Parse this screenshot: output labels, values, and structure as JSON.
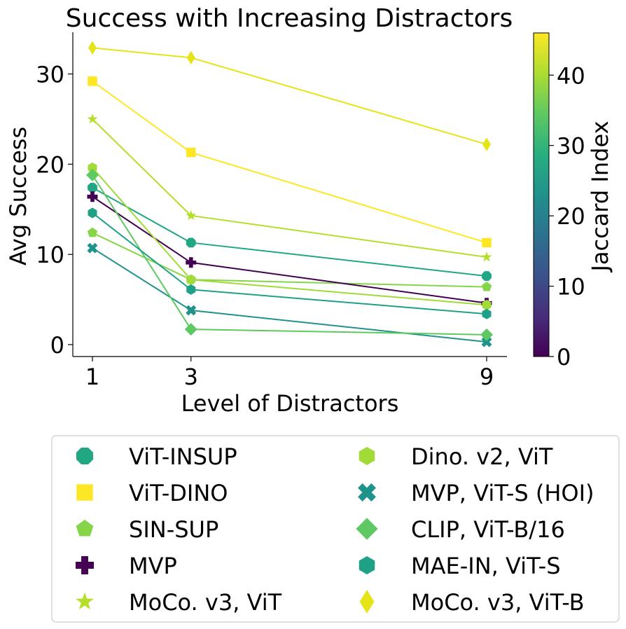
{
  "chart_data": {
    "type": "line",
    "title": "Success with Increasing Distractors",
    "xlabel": "Level of Distractors",
    "ylabel": "Avg Success",
    "x": [
      1,
      3,
      9
    ],
    "x_ticks": [
      "1",
      "3",
      "9"
    ],
    "ylim": [
      -1.2,
      34.6
    ],
    "y_ticks": [
      0,
      10,
      20,
      30
    ],
    "y_tick_labels": [
      "0",
      "10",
      "20",
      "30"
    ],
    "colorbar": {
      "label": "Jaccard Index",
      "range": [
        0,
        46
      ],
      "ticks": [
        0,
        10,
        20,
        30,
        40
      ],
      "tick_labels": [
        "0",
        "10",
        "20",
        "30",
        "40"
      ],
      "colormap": "viridis"
    },
    "legend_position": "bottom",
    "series": [
      {
        "name": "ViT-INSUP",
        "marker": "octagon",
        "color": "#22a784",
        "values": [
          17.4,
          11.3,
          7.6
        ]
      },
      {
        "name": "ViT-DINO",
        "marker": "square",
        "color": "#fde725",
        "values": [
          29.2,
          21.3,
          11.3
        ]
      },
      {
        "name": "SIN-SUP",
        "marker": "pentagon",
        "color": "#86d549",
        "values": [
          12.4,
          7.2,
          6.4
        ]
      },
      {
        "name": "MVP",
        "marker": "plus",
        "color": "#440154",
        "values": [
          16.4,
          9.1,
          4.6
        ]
      },
      {
        "name": "MoCo. v3, ViT",
        "marker": "star",
        "color": "#b5de2b",
        "values": [
          25.0,
          14.3,
          9.7
        ]
      },
      {
        "name": "Dino. v2, ViT",
        "marker": "hexagon",
        "color": "#a2da37",
        "values": [
          19.6,
          7.2,
          4.4
        ]
      },
      {
        "name": "MVP, ViT-S (HOI)",
        "marker": "x",
        "color": "#20928c",
        "values": [
          10.7,
          3.8,
          0.3
        ]
      },
      {
        "name": "CLIP, ViT-B/16",
        "marker": "diamond",
        "color": "#5ec962",
        "values": [
          18.8,
          1.7,
          1.1
        ]
      },
      {
        "name": "MAE-IN, ViT-S",
        "marker": "hexagon",
        "color": "#1fa187",
        "values": [
          14.6,
          6.1,
          3.4
        ]
      },
      {
        "name": "MoCo. v3, ViT-B",
        "marker": "thin-diamond",
        "color": "#e5e419",
        "values": [
          32.9,
          31.8,
          22.2
        ]
      }
    ]
  }
}
